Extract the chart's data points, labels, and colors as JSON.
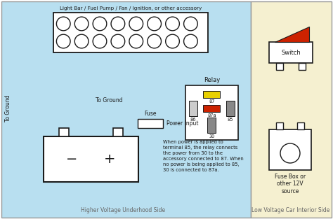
{
  "fig_w": 4.74,
  "fig_h": 3.13,
  "dpi": 100,
  "bg_left": "#b8dff0",
  "bg_right": "#f5f0d0",
  "border": "#999999",
  "lc": "#1a1a1a",
  "yellow": "#e8d000",
  "red": "#cc2200",
  "gray": "#888888",
  "lightgray": "#cccccc",
  "white": "#ffffff",
  "label_light": "Light Bar / Fuel Pump / Fan / Ignition, or other accessory",
  "label_relay": "Relay",
  "label_switch": "Switch",
  "label_fuse": "Fuse",
  "label_power": "Power Input",
  "label_toground": "To Ground",
  "label_toground_v": "To Ground",
  "label_left": "Higher Voltage Underhood Side",
  "label_right": "Low Voltage Car Interior Side",
  "label_fusebox": "Fuse Box or\nother 12V\nsource",
  "label_neg": "−",
  "label_pos": "+",
  "annotation": "When power is applied to\nterminal 85, the relay connects\nthe power from 30 to the\naccessory connected to 87. When\nno power is being applied to 85,\n30 is connected to 87a."
}
